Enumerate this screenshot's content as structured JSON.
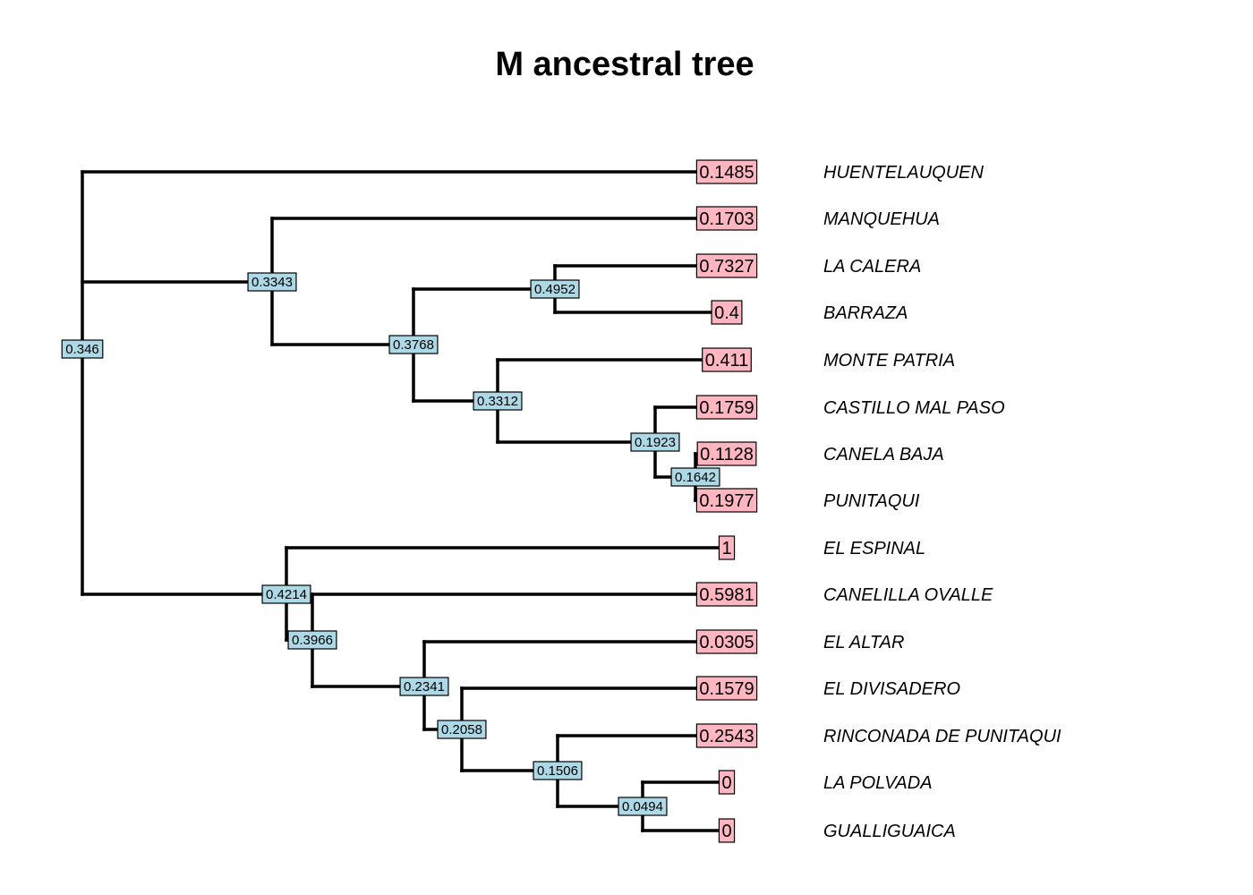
{
  "title": "M ancestral tree",
  "colors": {
    "node_box": "#add8e6",
    "tip_box": "#ffb6c1",
    "edge": "#000000"
  },
  "tips": [
    {
      "label": "HUENTELAUQUEN",
      "value": "0.1485"
    },
    {
      "label": "MANQUEHUA",
      "value": "0.1703"
    },
    {
      "label": "LA CALERA",
      "value": "0.7327"
    },
    {
      "label": "BARRAZA",
      "value": "0.4"
    },
    {
      "label": "MONTE PATRIA",
      "value": "0.411"
    },
    {
      "label": "CASTILLO MAL PASO",
      "value": "0.1759"
    },
    {
      "label": "CANELA BAJA",
      "value": "0.1128"
    },
    {
      "label": "PUNITAQUI",
      "value": "0.1977"
    },
    {
      "label": "EL ESPINAL",
      "value": "1"
    },
    {
      "label": "CANELILLA OVALLE",
      "value": "0.5981"
    },
    {
      "label": "EL ALTAR",
      "value": "0.0305"
    },
    {
      "label": "EL DIVISADERO",
      "value": "0.1579"
    },
    {
      "label": "RINCONADA DE PUNITAQUI",
      "value": "0.2543"
    },
    {
      "label": "LA POLVADA",
      "value": "0"
    },
    {
      "label": "GUALLIGUAICA",
      "value": "0"
    }
  ],
  "nodes": [
    {
      "id": "n1",
      "value": "0.346"
    },
    {
      "id": "n2",
      "value": "0.3343"
    },
    {
      "id": "n3",
      "value": "0.3768"
    },
    {
      "id": "n4",
      "value": "0.4952"
    },
    {
      "id": "n5",
      "value": "0.3312"
    },
    {
      "id": "n6",
      "value": "0.1923"
    },
    {
      "id": "n7",
      "value": "0.1642"
    },
    {
      "id": "n8",
      "value": "0.4214"
    },
    {
      "id": "n9",
      "value": "0.3966"
    },
    {
      "id": "n10",
      "value": "0.2341"
    },
    {
      "id": "n11",
      "value": "0.2058"
    },
    {
      "id": "n12",
      "value": "0.1506"
    },
    {
      "id": "n13",
      "value": "0.0494"
    }
  ]
}
